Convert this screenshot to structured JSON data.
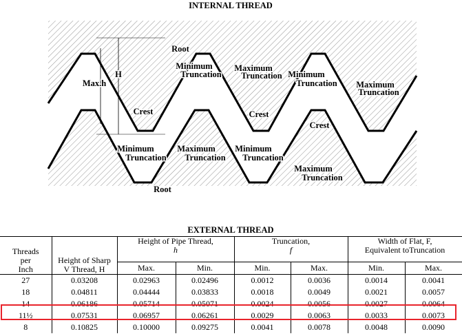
{
  "diagram": {
    "title_top": "INTERNAL THREAD",
    "title_bottom": "EXTERNAL THREAD",
    "labels": [
      "Root",
      "Minimum",
      "Truncation",
      "Maximum",
      "Truncation",
      "Minimum",
      "Truncation",
      "Maximum",
      "Truncation",
      "Max.h",
      "H",
      "Crest",
      "Crest",
      "Crest",
      "Minimum",
      "Truncation",
      "Maximum",
      "Truncation",
      "Minimum",
      "Truncation",
      "Maximum",
      "Truncation",
      "Root"
    ]
  },
  "table": {
    "header": [
      [
        "Threads",
        "per",
        "Inch"
      ],
      [
        "Height of Sharp",
        "V Thread, H"
      ],
      [
        "Height of Pipe Thread,",
        "h"
      ],
      [
        "Truncation,",
        "f"
      ],
      [
        "Width of Flat, F,",
        "Equivalent toTruncation"
      ]
    ],
    "subheader": [
      "Max.",
      "Min.",
      "Min.",
      "Max.",
      "Min.",
      "Max."
    ],
    "rows": [
      [
        "27",
        "0.03208",
        "0.02963",
        "0.02496",
        "0.0012",
        "0.0036",
        "0.0014",
        "0.0041"
      ],
      [
        "18",
        "0.04811",
        "0.04444",
        "0.03833",
        "0.0018",
        "0.0049",
        "0.0021",
        "0.0057"
      ],
      [
        "14",
        "0.06186",
        "0.05714",
        "0.05071",
        "0.0024",
        "0.0056",
        "0.0027",
        "0.0064"
      ],
      [
        "11½",
        "0.07531",
        "0.06957",
        "0.06261",
        "0.0029",
        "0.0063",
        "0.0033",
        "0.0073"
      ],
      [
        "8",
        "0.10825",
        "0.10000",
        "0.09275",
        "0.0041",
        "0.0078",
        "0.0048",
        "0.0090"
      ]
    ]
  }
}
